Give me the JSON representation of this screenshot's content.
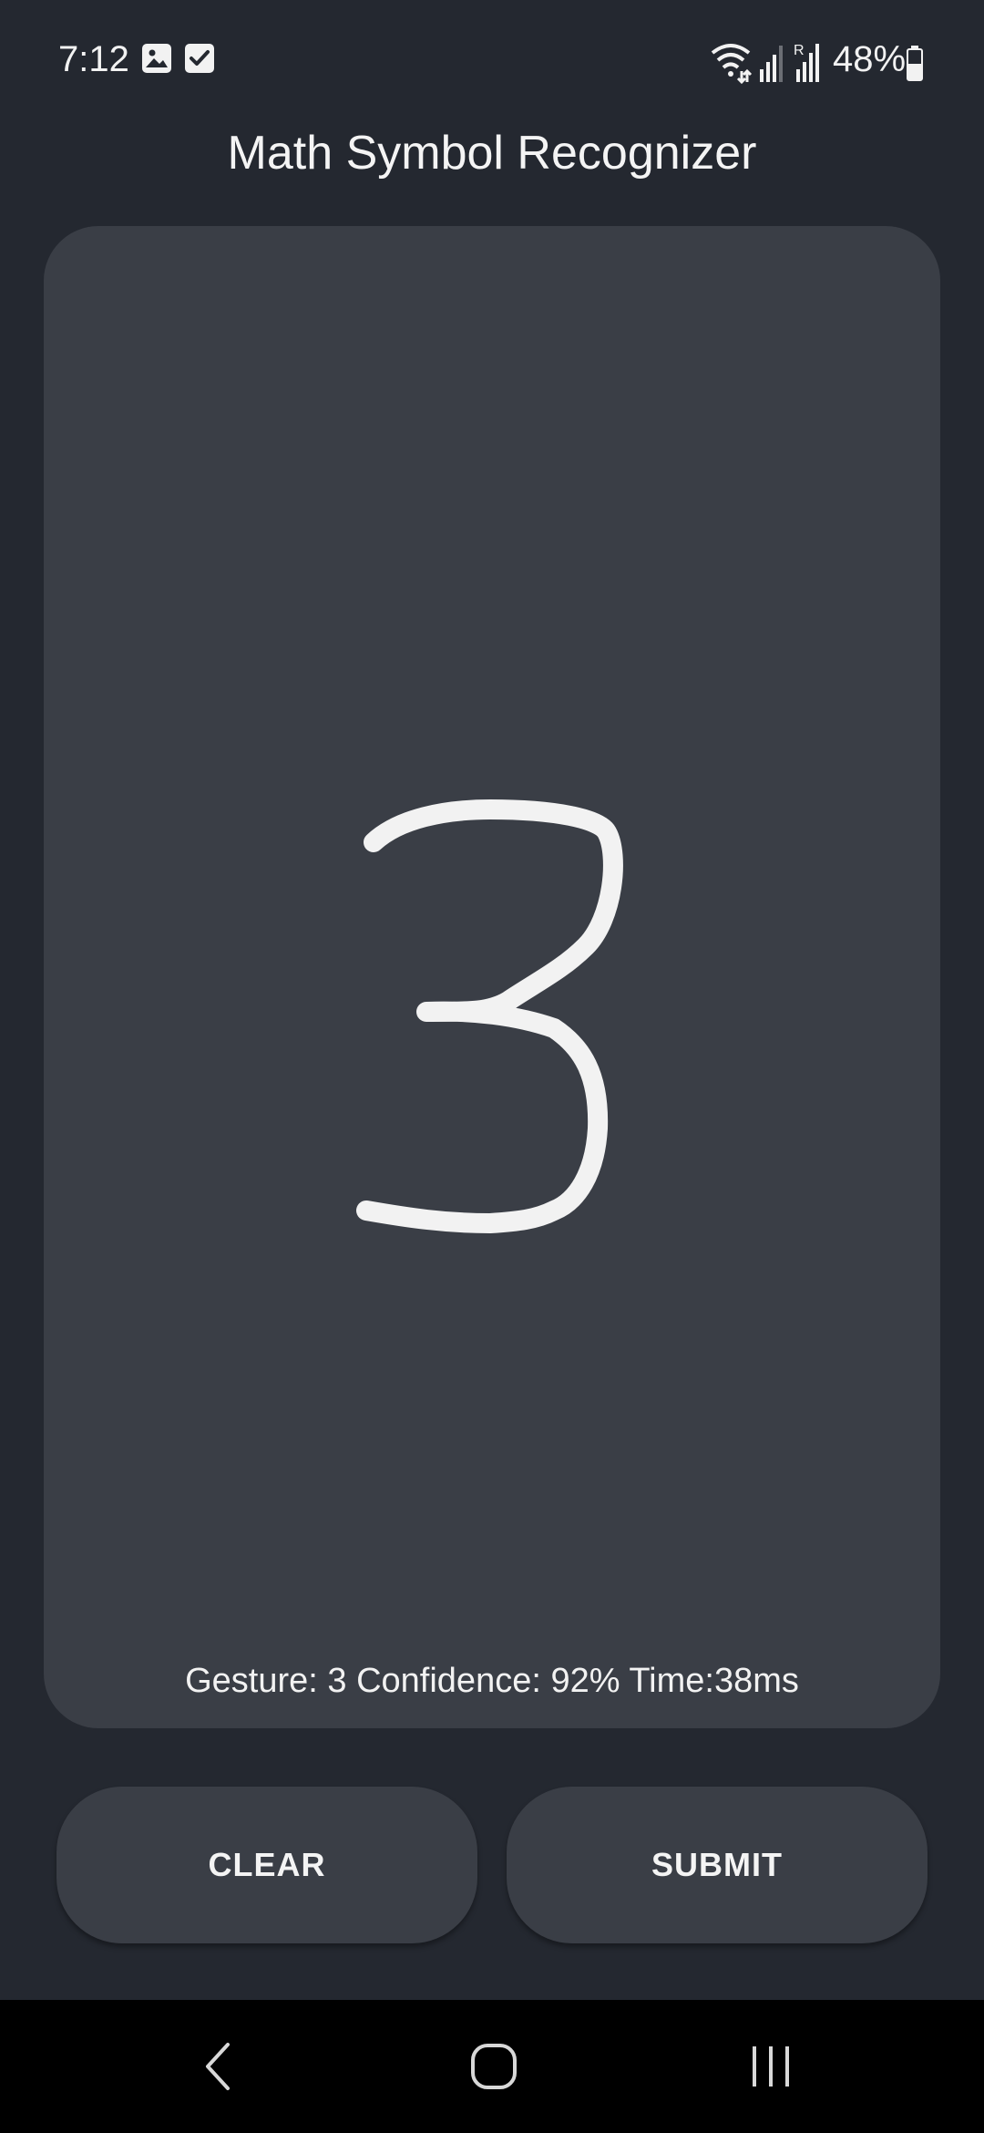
{
  "status_bar": {
    "time": "7:12",
    "left_icons": [
      "gallery-icon",
      "checkbox-icon"
    ],
    "right_icons": [
      "wifi-icon",
      "signal-icon",
      "roaming-signal-icon",
      "battery-icon"
    ],
    "battery_percent": "48%"
  },
  "app": {
    "title": "Math Symbol Recognizer"
  },
  "canvas": {
    "drawn_symbol": "3",
    "stroke_color": "#f2f2f2",
    "result_text": "Gesture: 3 Confidence: 92% Time:38ms"
  },
  "buttons": {
    "clear_label": "CLEAR",
    "submit_label": "SUBMIT"
  },
  "nav": {
    "back": "back-icon",
    "home": "home-icon",
    "recents": "recents-icon"
  },
  "colors": {
    "background": "#242830",
    "card": "#3a3e46",
    "text": "#f4f4f4",
    "nav_bar": "#000000"
  }
}
